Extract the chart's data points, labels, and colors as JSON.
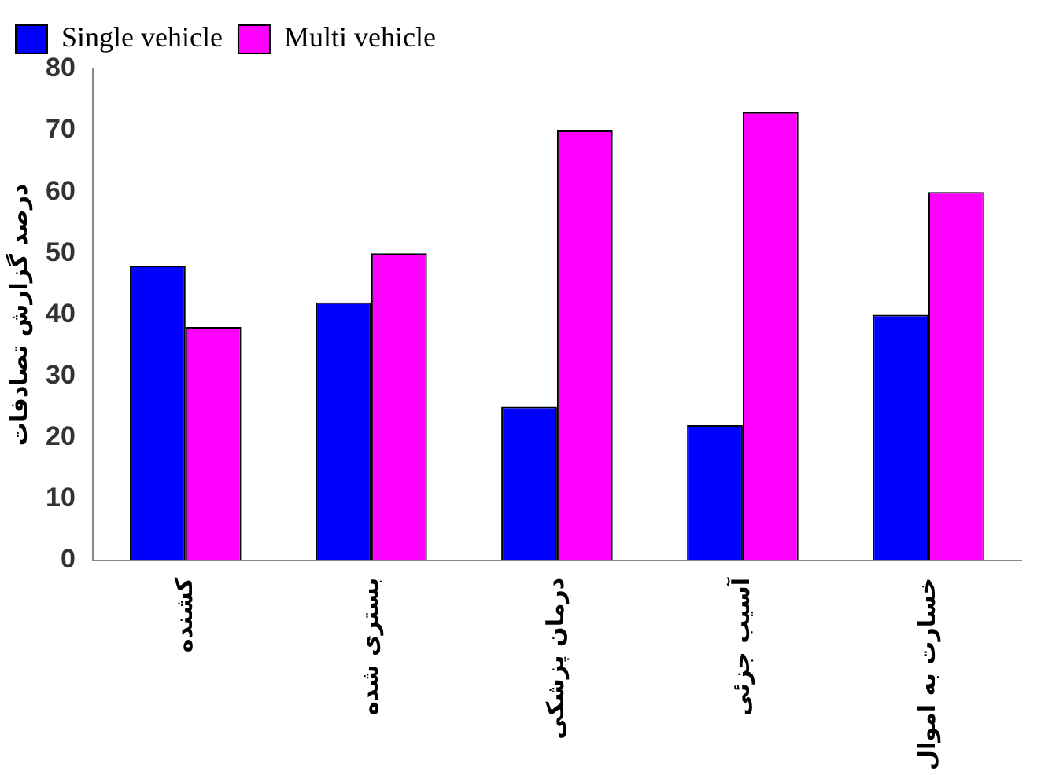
{
  "chart_data": {
    "type": "bar",
    "ylabel": "درصد گزارش تصادفات",
    "categories": [
      "کشنده",
      "بستری شده",
      "درمان پزشکی",
      "آسیب جزئی",
      "خسارت به اموال"
    ],
    "series": [
      {
        "name": "Single vehicle",
        "color": "#0000ff",
        "values": [
          48,
          42,
          25,
          22,
          40
        ]
      },
      {
        "name": "Multi vehicle",
        "color": "#ff00ff",
        "values": [
          38,
          50,
          70,
          73,
          60
        ]
      }
    ],
    "ylim": [
      0,
      80
    ],
    "yticks": [
      0,
      10,
      20,
      30,
      40,
      50,
      60,
      70,
      80
    ],
    "grid": false,
    "legend": "top left"
  }
}
